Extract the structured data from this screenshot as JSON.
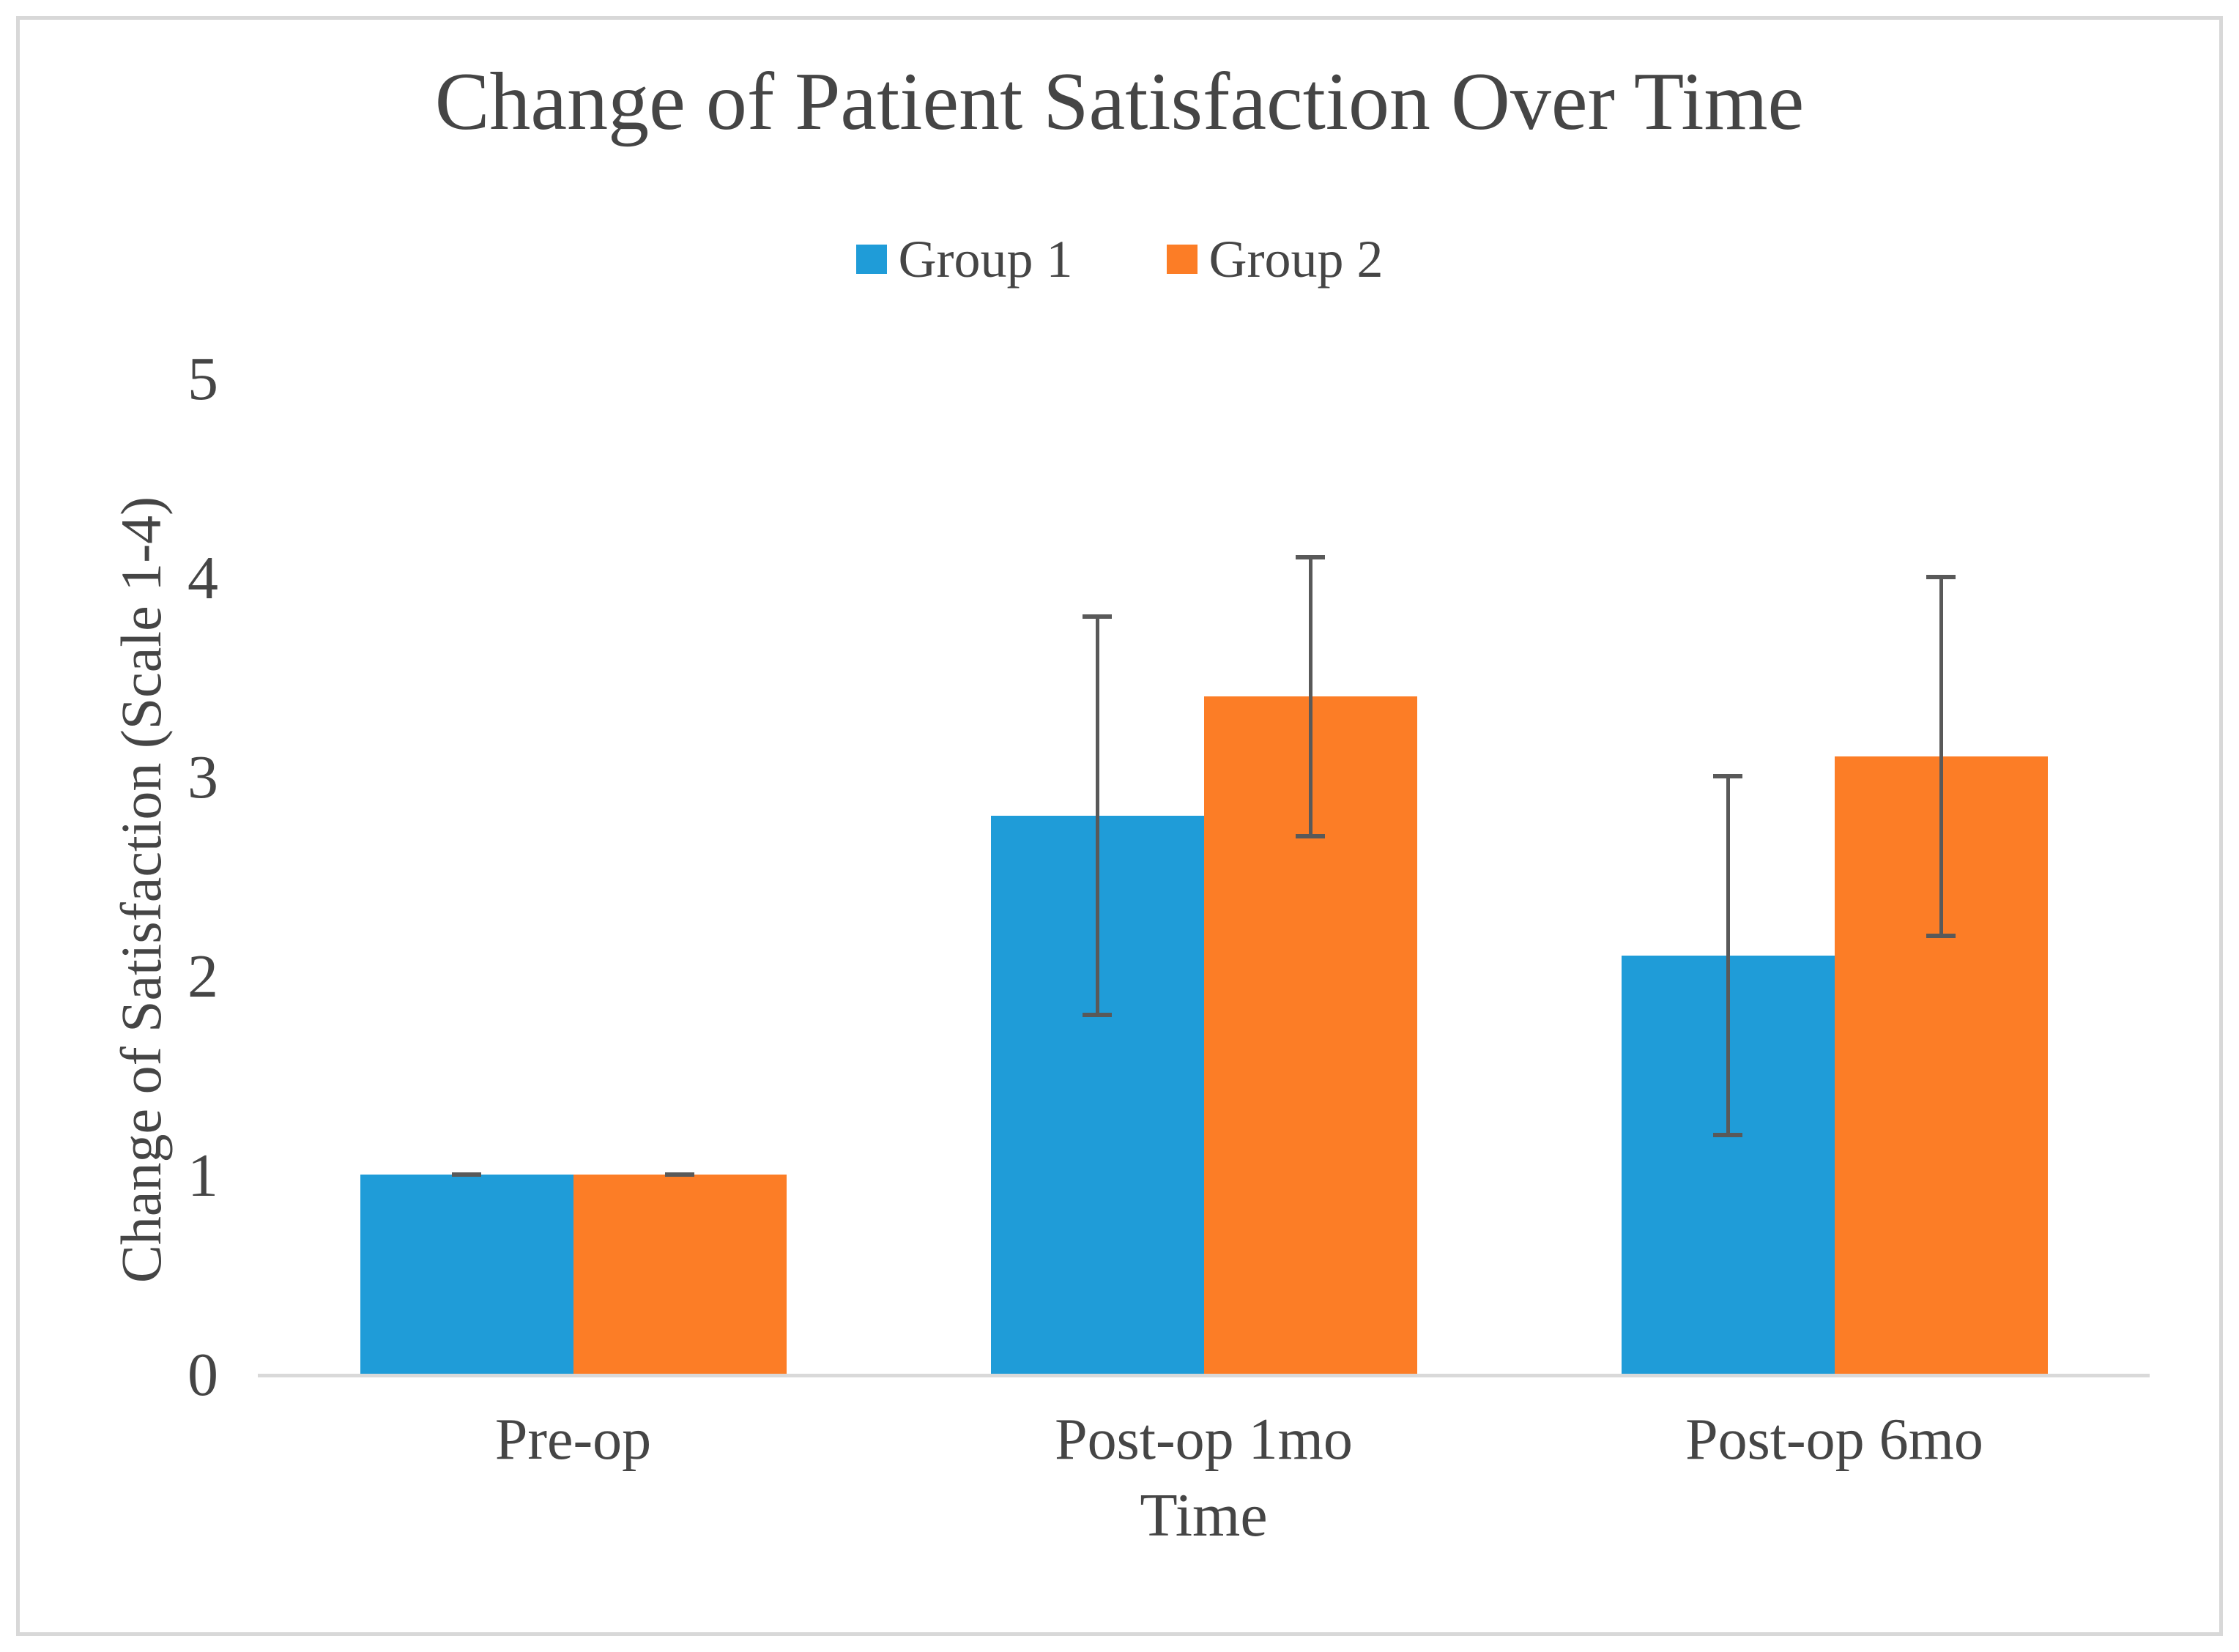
{
  "chart_data": {
    "type": "bar",
    "title": "Change of Patient Satisfaction Over Time",
    "xlabel": "Time",
    "ylabel": "Change of Satisfaction (Scale 1-4)",
    "categories": [
      "Pre-op",
      "Post-op 1mo",
      "Post-op 6mo"
    ],
    "series": [
      {
        "name": "Group 1",
        "color": "#1f9cd8",
        "values": [
          1.0,
          2.8,
          2.1
        ],
        "error_plus": [
          0.0,
          1.0,
          0.9
        ],
        "error_minus": [
          0.0,
          1.0,
          0.9
        ]
      },
      {
        "name": "Group 2",
        "color": "#fc7d26",
        "values": [
          1.0,
          3.4,
          3.1
        ],
        "error_plus": [
          0.0,
          0.7,
          0.9
        ],
        "error_minus": [
          0.0,
          0.7,
          0.9
        ]
      }
    ],
    "y_ticks": [
      0,
      1,
      2,
      3,
      4,
      5
    ],
    "ylim": [
      0,
      5
    ],
    "grid": false,
    "legend_position": "top",
    "error_bars": true
  },
  "colors": {
    "error_bar": "#595959",
    "axis_line": "#d9d9d9",
    "frame_border": "#d8d8d8",
    "text": "#454545"
  }
}
